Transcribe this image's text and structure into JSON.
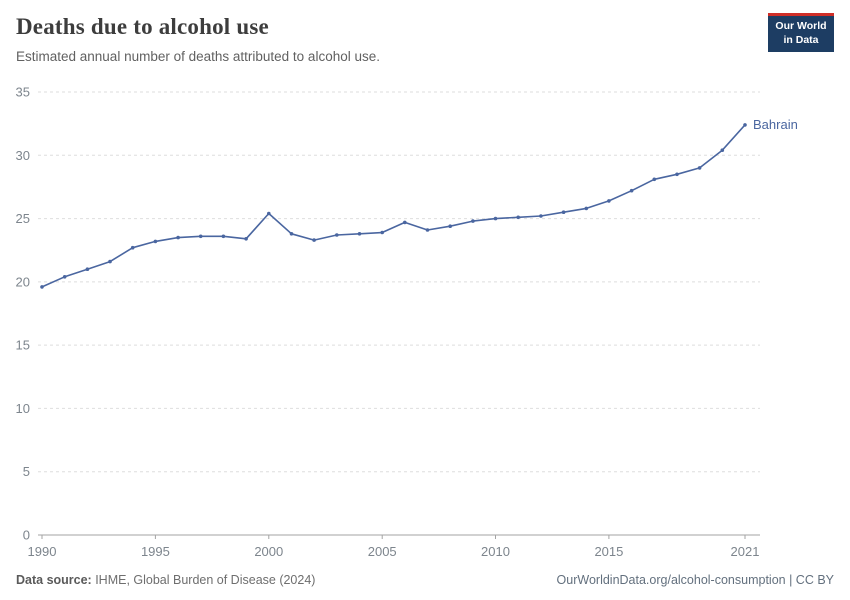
{
  "chart_data": {
    "type": "line",
    "title": "Deaths due to alcohol use",
    "subtitle": "Estimated annual number of deaths attributed to alcohol use.",
    "xlim": [
      1990,
      2021
    ],
    "ylim": [
      0,
      35
    ],
    "xticks": [
      1990,
      1995,
      2000,
      2005,
      2010,
      2015,
      2021
    ],
    "yticks": [
      0,
      5,
      10,
      15,
      20,
      25,
      30,
      35
    ],
    "grid": "dashed horizontal gridlines, solid baseline at 0",
    "legend": "end-of-line label",
    "series": [
      {
        "name": "Bahrain",
        "color": "#4a66a0",
        "x": [
          1990,
          1991,
          1992,
          1993,
          1994,
          1995,
          1996,
          1997,
          1998,
          1999,
          2000,
          2001,
          2002,
          2003,
          2004,
          2005,
          2006,
          2007,
          2008,
          2009,
          2010,
          2011,
          2012,
          2013,
          2014,
          2015,
          2016,
          2017,
          2018,
          2019,
          2020,
          2021
        ],
        "values": [
          19.6,
          20.4,
          21.0,
          21.6,
          22.7,
          23.2,
          23.5,
          23.6,
          23.6,
          23.4,
          25.4,
          23.8,
          23.3,
          23.7,
          23.8,
          23.9,
          24.7,
          24.1,
          24.4,
          24.8,
          25.0,
          25.1,
          25.2,
          25.5,
          25.8,
          26.4,
          27.2,
          28.1,
          28.5,
          29.0,
          30.4,
          32.4
        ]
      }
    ]
  },
  "logo": {
    "line1": "Our World",
    "line2": "in Data"
  },
  "footer": {
    "source_label": "Data source:",
    "source_text": " IHME, Global Burden of Disease (2024)",
    "link": "OurWorldinData.org/alcohol-consumption | CC BY"
  }
}
